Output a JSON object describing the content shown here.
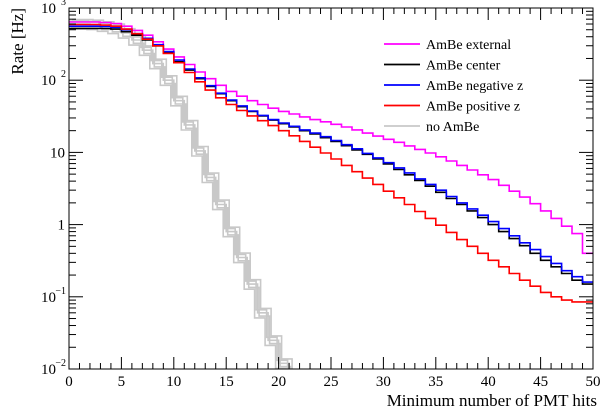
{
  "chart_data": {
    "type": "line",
    "step": true,
    "xlabel": "Minimum number of PMT hits",
    "ylabel": "Rate [Hz]",
    "xlim": [
      0,
      50
    ],
    "ylim": [
      0.01,
      1000
    ],
    "yscale": "log",
    "grid": false,
    "legend_position": "top-right",
    "x_ticks": [
      "0",
      "5",
      "10",
      "15",
      "20",
      "25",
      "30",
      "35",
      "40",
      "45",
      "50"
    ],
    "y_ticks": [
      {
        "value": 0.01,
        "base": "10",
        "exp": "−2"
      },
      {
        "value": 0.1,
        "base": "10",
        "exp": "−1"
      },
      {
        "value": 1,
        "base": "1",
        "exp": ""
      },
      {
        "value": 10,
        "base": "10",
        "exp": ""
      },
      {
        "value": 100,
        "base": "10",
        "exp": "2"
      },
      {
        "value": 1000,
        "base": "10",
        "exp": "3"
      }
    ],
    "x": [
      0,
      1,
      2,
      3,
      4,
      5,
      6,
      7,
      8,
      9,
      10,
      11,
      12,
      13,
      14,
      15,
      16,
      17,
      18,
      19,
      20,
      21,
      22,
      23,
      24,
      25,
      26,
      27,
      28,
      29,
      30,
      31,
      32,
      33,
      34,
      35,
      36,
      37,
      38,
      39,
      40,
      41,
      42,
      43,
      44,
      45,
      46,
      47,
      48,
      49
    ],
    "series": [
      {
        "name": "AmBe external",
        "color": "#ff00ff",
        "values": [
          640,
          640,
          640,
          630,
          610,
          560,
          490,
          420,
          340,
          270,
          210,
          165,
          130,
          105,
          85,
          70,
          60,
          52,
          46,
          41,
          37,
          34,
          31,
          28.5,
          26.5,
          24.5,
          22.5,
          20.5,
          18.5,
          16.8,
          15.2,
          13.8,
          12.3,
          11,
          9.8,
          8.7,
          7.6,
          6.6,
          5.7,
          4.9,
          4.2,
          3.5,
          2.9,
          2.4,
          1.95,
          1.55,
          1.22,
          0.95,
          0.75,
          0.4
        ]
      },
      {
        "name": "AmBe center",
        "color": "#000000",
        "values": [
          520,
          520,
          520,
          520,
          510,
          470,
          420,
          360,
          300,
          240,
          180,
          138,
          105,
          82,
          65,
          52,
          43,
          37,
          32,
          28,
          25,
          22.5,
          20,
          18,
          16,
          14.2,
          12.4,
          10.8,
          9.4,
          8.1,
          6.9,
          5.8,
          4.9,
          4.1,
          3.4,
          2.8,
          2.3,
          1.9,
          1.55,
          1.25,
          1.0,
          0.8,
          0.64,
          0.51,
          0.4,
          0.32,
          0.26,
          0.21,
          0.17,
          0.15
        ]
      },
      {
        "name": "AmBe negative z",
        "color": "#0000ff",
        "values": [
          560,
          560,
          560,
          555,
          540,
          500,
          440,
          380,
          310,
          250,
          190,
          143,
          108,
          84,
          66,
          53,
          44,
          37.5,
          32.5,
          28.5,
          25.5,
          23,
          20.5,
          18.5,
          16.5,
          14.6,
          12.8,
          11.2,
          9.7,
          8.4,
          7.2,
          6.1,
          5.2,
          4.3,
          3.6,
          3.0,
          2.45,
          2.0,
          1.65,
          1.35,
          1.1,
          0.88,
          0.7,
          0.56,
          0.45,
          0.36,
          0.29,
          0.23,
          0.19,
          0.16
        ]
      },
      {
        "name": "AmBe positive z",
        "color": "#ff0000",
        "values": [
          590,
          590,
          590,
          580,
          560,
          510,
          440,
          370,
          300,
          235,
          175,
          128,
          95,
          73,
          57,
          46,
          38,
          32,
          27.5,
          23.5,
          20,
          17,
          14.2,
          11.8,
          9.8,
          8.1,
          6.6,
          5.4,
          4.4,
          3.6,
          2.9,
          2.35,
          1.9,
          1.52,
          1.22,
          0.98,
          0.78,
          0.62,
          0.5,
          0.4,
          0.32,
          0.26,
          0.21,
          0.17,
          0.14,
          0.115,
          0.1,
          0.09,
          0.085,
          0.085
        ]
      },
      {
        "name": "no AmBe",
        "color": "#c8c8c8",
        "values": [
          600,
          600,
          590,
          560,
          520,
          450,
          360,
          260,
          170,
          100,
          52,
          24,
          10.5,
          4.5,
          1.9,
          0.8,
          0.35,
          0.15,
          0.06,
          0.025,
          0.012,
          0.008,
          0.008,
          0.008,
          0.008,
          0.008,
          0.008,
          0.008,
          0.008,
          0.008,
          0.008,
          0.008,
          0.008,
          0.008,
          0.008,
          0.008,
          0.008,
          0.008,
          0.008,
          0.008,
          0.008,
          0.008,
          0.008,
          0.008,
          0.008,
          0.008,
          0.008,
          0.008,
          0.008,
          0.008
        ]
      }
    ]
  }
}
